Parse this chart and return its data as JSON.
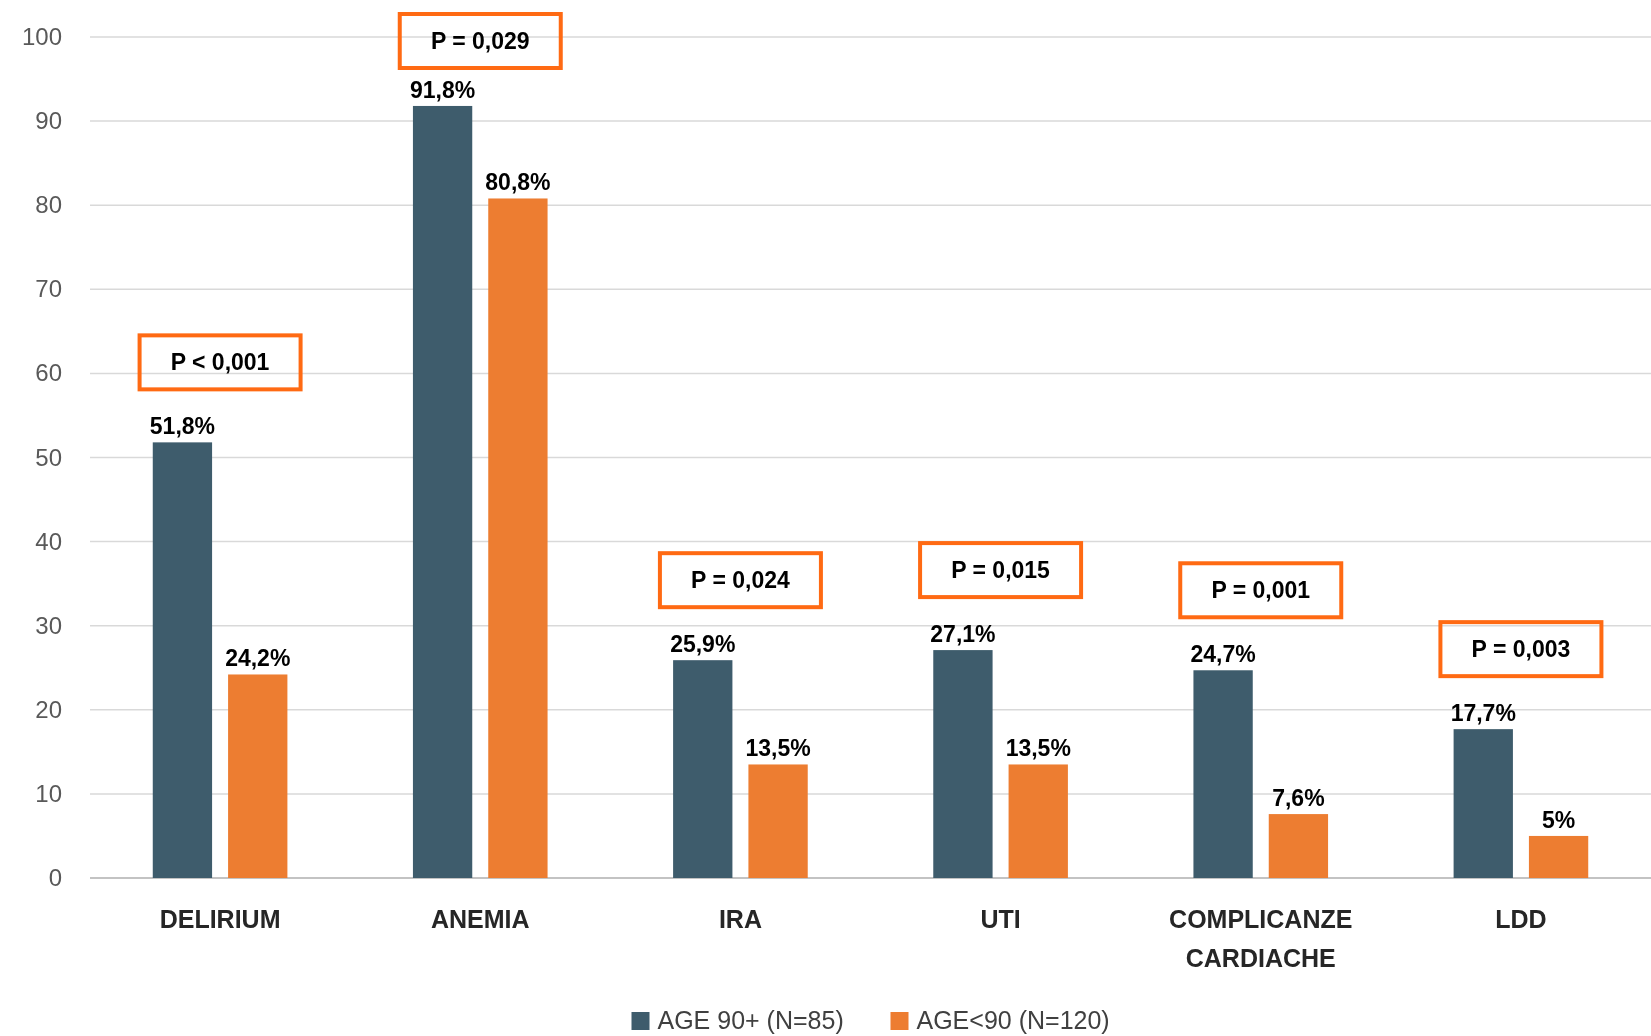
{
  "chart_data": {
    "type": "bar",
    "categories": [
      "DELIRIUM",
      "ANEMIA",
      "IRA",
      "UTI",
      "COMPLICANZE CARDIACHE",
      "LDD"
    ],
    "series": [
      {
        "name": "AGE 90+ (N=85)",
        "color": "#3e5c6c",
        "values": [
          51.8,
          91.8,
          25.9,
          27.1,
          24.7,
          17.7
        ],
        "value_labels": [
          "51,8%",
          "91,8%",
          "25,9%",
          "27,1%",
          "24,7%",
          "17,7%"
        ]
      },
      {
        "name": "AGE<90 (N=120)",
        "color": "#ed7d31",
        "values": [
          24.2,
          80.8,
          13.5,
          13.5,
          7.6,
          5
        ],
        "value_labels": [
          "24,2%",
          "80,8%",
          "13,5%",
          "13,5%",
          "7,6%",
          "5%"
        ]
      }
    ],
    "ylim": [
      0,
      100
    ],
    "yticks": [
      0,
      10,
      20,
      30,
      40,
      50,
      60,
      70,
      80,
      90,
      100
    ],
    "grid": "y",
    "legend": "bottom",
    "annotations": [
      "P < 0,001",
      "P = 0,029",
      "P = 0,024",
      "P = 0,015",
      "P = 0,001",
      "P = 0,003"
    ]
  }
}
